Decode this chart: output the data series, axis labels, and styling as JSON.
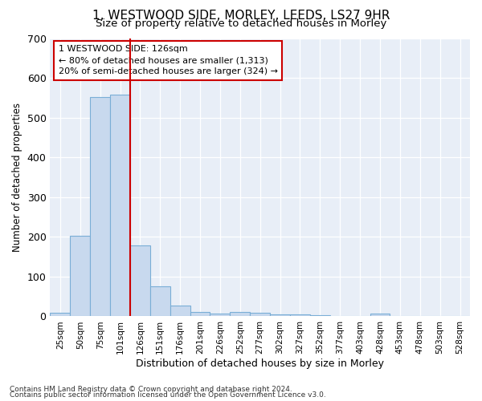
{
  "title": "1, WESTWOOD SIDE, MORLEY, LEEDS, LS27 9HR",
  "subtitle": "Size of property relative to detached houses in Morley",
  "xlabel": "Distribution of detached houses by size in Morley",
  "ylabel": "Number of detached properties",
  "categories": [
    "25sqm",
    "50sqm",
    "75sqm",
    "101sqm",
    "126sqm",
    "151sqm",
    "176sqm",
    "201sqm",
    "226sqm",
    "252sqm",
    "277sqm",
    "302sqm",
    "327sqm",
    "352sqm",
    "377sqm",
    "403sqm",
    "428sqm",
    "453sqm",
    "478sqm",
    "503sqm",
    "528sqm"
  ],
  "values": [
    10,
    203,
    551,
    558,
    178,
    76,
    28,
    11,
    6,
    11,
    10,
    5,
    4,
    2,
    0,
    0,
    7,
    0,
    0,
    0,
    0
  ],
  "bar_color": "#c8d9ee",
  "bar_edge_color": "#7aaed6",
  "vline_color": "#cc0000",
  "annotation_text": "1 WESTWOOD SIDE: 126sqm\n← 80% of detached houses are smaller (1,313)\n20% of semi-detached houses are larger (324) →",
  "annotation_box_facecolor": "#ffffff",
  "annotation_box_edgecolor": "#cc0000",
  "ylim": [
    0,
    700
  ],
  "yticks": [
    0,
    100,
    200,
    300,
    400,
    500,
    600,
    700
  ],
  "footnote1": "Contains HM Land Registry data © Crown copyright and database right 2024.",
  "footnote2": "Contains public sector information licensed under the Open Government Licence v3.0.",
  "bg_color": "#ffffff",
  "plot_bg_color": "#e8eef7"
}
